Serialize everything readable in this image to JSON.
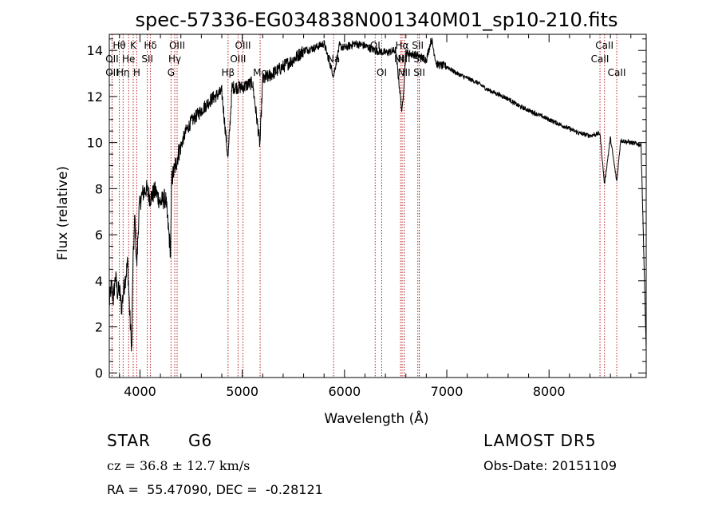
{
  "chart_data": {
    "type": "line",
    "title": "spec-57336-EG034838N001340M01_sp10-210.fits",
    "xlabel": "Wavelength (Å)",
    "ylabel": "Flux (relative)",
    "xlim": [
      3700,
      8950
    ],
    "ylim": [
      -0.2,
      14.7
    ],
    "xticks": [
      4000,
      5000,
      6000,
      7000,
      8000
    ],
    "yticks": [
      0,
      2,
      4,
      6,
      8,
      10,
      12,
      14
    ],
    "x_minor_step": 200,
    "y_minor_step": 0.5,
    "series": [
      {
        "color": "#000000",
        "x": [
          3700,
          3720,
          3740,
          3760,
          3780,
          3800,
          3820,
          3840,
          3860,
          3880,
          3900,
          3920,
          3930,
          3950,
          3968,
          3990,
          4010,
          4030,
          4060,
          4100,
          4150,
          4200,
          4250,
          4300,
          4310,
          4340,
          4380,
          4450,
          4500,
          4600,
          4700,
          4800,
          4861,
          4900,
          5000,
          5100,
          5173,
          5200,
          5300,
          5400,
          5500,
          5600,
          5700,
          5800,
          5893,
          5950,
          6000,
          6100,
          6200,
          6300,
          6400,
          6500,
          6563,
          6600,
          6700,
          6800,
          6850,
          6900,
          7000,
          7100,
          7200,
          7300,
          7400,
          7500,
          7600,
          7700,
          7800,
          7900,
          8000,
          8100,
          8200,
          8300,
          8400,
          8498,
          8542,
          8600,
          8662,
          8700,
          8800,
          8900,
          8950
        ],
        "values": [
          3.0,
          3.8,
          3.2,
          4.2,
          3.5,
          3.6,
          2.8,
          3.6,
          4.2,
          4.8,
          2.5,
          1.0,
          4.5,
          6.8,
          4.6,
          7.0,
          7.6,
          7.8,
          8.0,
          7.6,
          7.9,
          7.4,
          7.6,
          5.2,
          8.4,
          8.9,
          9.6,
          10.5,
          10.9,
          11.4,
          11.9,
          12.2,
          9.3,
          12.4,
          12.4,
          12.6,
          9.9,
          12.7,
          13.0,
          13.3,
          13.6,
          14.0,
          14.1,
          14.3,
          12.9,
          14.2,
          14.1,
          14.3,
          14.2,
          14.0,
          13.9,
          14.0,
          11.3,
          13.9,
          13.8,
          13.6,
          14.5,
          13.4,
          13.3,
          13.0,
          12.8,
          12.6,
          12.3,
          12.1,
          11.9,
          11.6,
          11.4,
          11.2,
          11.0,
          10.8,
          10.6,
          10.4,
          10.3,
          10.4,
          8.2,
          10.2,
          8.3,
          10.1,
          10.0,
          9.9,
          1.0
        ]
      }
    ],
    "spectral_lines": [
      {
        "label": "Hθ",
        "wavelength": 3798,
        "row": 1
      },
      {
        "label": "OII",
        "wavelength": 3727,
        "row": 2
      },
      {
        "label": "OII",
        "wavelength": 3727,
        "row": 3
      },
      {
        "label": "Hη",
        "wavelength": 3835,
        "row": 3
      },
      {
        "label": "K",
        "wavelength": 3934,
        "row": 1
      },
      {
        "label": "He",
        "wavelength": 3889,
        "row": 2
      },
      {
        "label": "H",
        "wavelength": 3968,
        "row": 3
      },
      {
        "label": "Hδ",
        "wavelength": 4102,
        "row": 1
      },
      {
        "label": "SII",
        "wavelength": 4072,
        "row": 2
      },
      {
        "label": "OIII",
        "wavelength": 4363,
        "row": 1
      },
      {
        "label": "Hγ",
        "wavelength": 4340,
        "row": 2
      },
      {
        "label": "G",
        "wavelength": 4304,
        "row": 3
      },
      {
        "label": "OIII",
        "wavelength": 5007,
        "row": 1
      },
      {
        "label": "OIII",
        "wavelength": 4959,
        "row": 2
      },
      {
        "label": "Hβ",
        "wavelength": 4861,
        "row": 3
      },
      {
        "label": "Mg",
        "wavelength": 5175,
        "row": 3
      },
      {
        "label": "Na",
        "wavelength": 5893,
        "row": 2
      },
      {
        "label": "OI",
        "wavelength": 6300,
        "row": 1
      },
      {
        "label": "NII",
        "wavelength": 6548,
        "row": 2
      },
      {
        "label": "OI",
        "wavelength": 6364,
        "row": 3
      },
      {
        "label": "Hα",
        "wavelength": 6563,
        "row": 1
      },
      {
        "label": "NII",
        "wavelength": 6583,
        "row": 2
      },
      {
        "label": "NII",
        "wavelength": 6583,
        "row": 3
      },
      {
        "label": "SII",
        "wavelength": 6717,
        "row": 1
      },
      {
        "label": "SII",
        "wavelength": 6731,
        "row": 2
      },
      {
        "label": "SII",
        "wavelength": 6731,
        "row": 3
      },
      {
        "label": "CaII",
        "wavelength": 8542,
        "row": 1
      },
      {
        "label": "CaII",
        "wavelength": 8498,
        "row": 2
      },
      {
        "label": "CaII",
        "wavelength": 8662,
        "row": 3
      }
    ],
    "line_marker_color": "#b22222"
  },
  "info": {
    "object_class": "STAR",
    "subclass": "G6",
    "survey": "LAMOST DR5",
    "redshift": "cz = 36.8 ± 12.7 km/s",
    "obs_date": "Obs-Date: 20151109",
    "coords": "RA =  55.47090, DEC =  -0.28121"
  }
}
